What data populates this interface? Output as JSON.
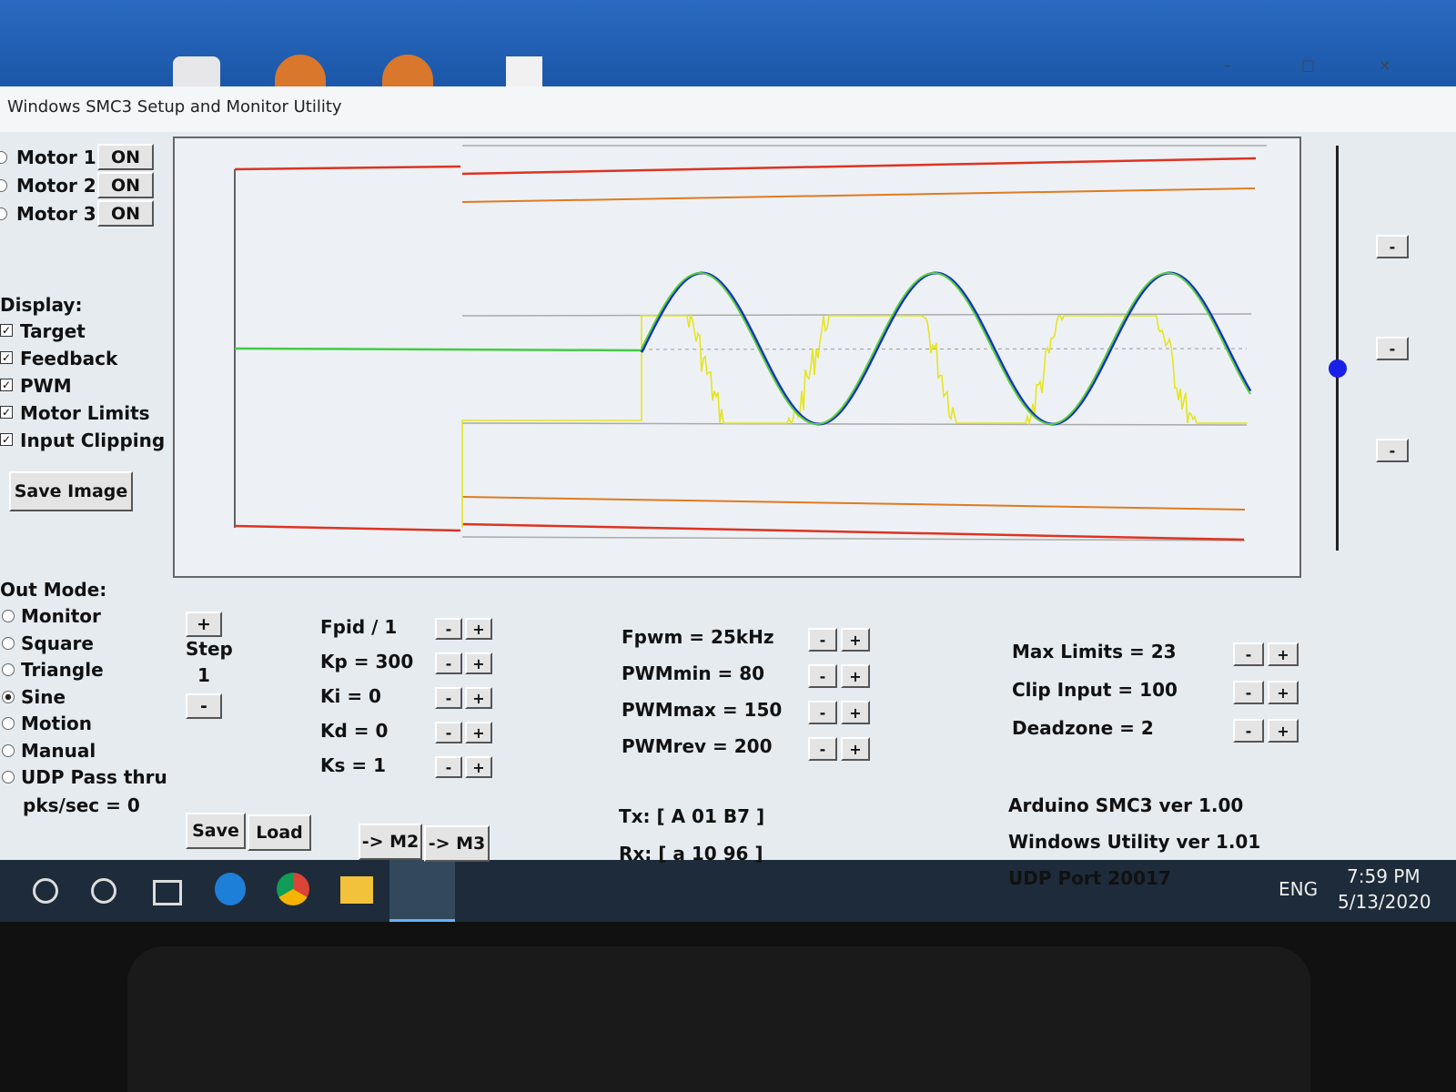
{
  "window": {
    "title": "Windows SMC3 Setup and Monitor Utility",
    "controls": [
      "–",
      "□",
      "×"
    ]
  },
  "motors": [
    {
      "label": "Motor 1",
      "button": "ON"
    },
    {
      "label": "Motor 2",
      "button": "ON"
    },
    {
      "label": "Motor 3",
      "button": "ON"
    }
  ],
  "display": {
    "heading": "Display:",
    "options": [
      {
        "label": "Target",
        "checked": true
      },
      {
        "label": "Feedback",
        "checked": true
      },
      {
        "label": "PWM",
        "checked": true
      },
      {
        "label": "Motor Limits",
        "checked": true
      },
      {
        "label": "Input Clipping",
        "checked": true
      }
    ],
    "save_button": "Save Image"
  },
  "side_buttons": [
    "-",
    "-",
    "-"
  ],
  "out_mode": {
    "heading": "Out Mode:",
    "options": [
      "Monitor",
      "Square",
      "Triangle",
      "Sine",
      "Motion",
      "Manual",
      "UDP Pass thru"
    ],
    "selected": 3,
    "rate": "pks/sec = 0"
  },
  "step": {
    "plus": "+",
    "label": "Step",
    "value": "1",
    "minus": "-"
  },
  "pid": [
    {
      "label": "Fpid / 1",
      "minus": "-",
      "plus": "+"
    },
    {
      "label": "Kp = 300",
      "minus": "-",
      "plus": "+"
    },
    {
      "label": "Ki = 0",
      "minus": "-",
      "plus": "+"
    },
    {
      "label": "Kd = 0",
      "minus": "-",
      "plus": "+"
    },
    {
      "label": "Ks = 1",
      "minus": "-",
      "plus": "+"
    }
  ],
  "pwm": [
    {
      "label": "Fpwm = 25kHz",
      "minus": "-",
      "plus": "+"
    },
    {
      "label": "PWMmin = 80",
      "minus": "-",
      "plus": "+"
    },
    {
      "label": "PWMmax = 150",
      "minus": "-",
      "plus": "+"
    },
    {
      "label": "PWMrev = 200",
      "minus": "-",
      "plus": "+"
    }
  ],
  "limits": [
    {
      "label": "Max Limits = 23",
      "minus": "-",
      "plus": "+"
    },
    {
      "label": "Clip Input = 100",
      "minus": "-",
      "plus": "+"
    },
    {
      "label": "Deadzone = 2",
      "minus": "-",
      "plus": "+"
    }
  ],
  "info": [
    "Arduino SMC3 ver 1.00",
    "Windows Utility ver 1.01",
    "UDP Port 20017"
  ],
  "comms": [
    "Tx: [ A 01 B7 ]",
    "Rx: [ a 10 96 ]"
  ],
  "buttons": {
    "save": "Save",
    "load": "Load",
    "m2": "-> M2",
    "m3": "-> M3"
  },
  "taskbar": {
    "language": "ENG",
    "time": "7:59 PM",
    "date": "5/13/2020"
  }
}
